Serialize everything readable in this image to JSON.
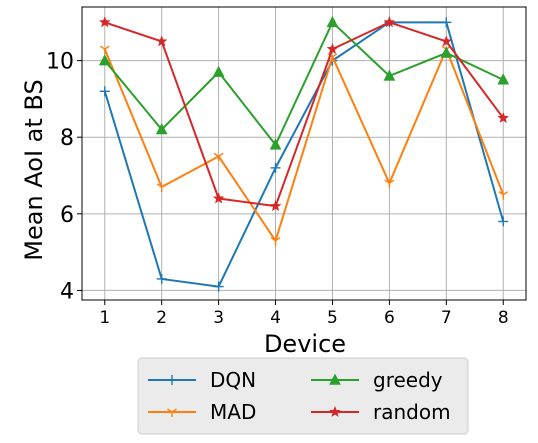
{
  "chart_data": {
    "type": "line",
    "xlabel": "Device",
    "ylabel": "Mean AoI at BS",
    "x": [
      1,
      2,
      3,
      4,
      5,
      6,
      7,
      8
    ],
    "xlim": [
      0.6,
      8.4
    ],
    "ylim": [
      3.75,
      11.4
    ],
    "xticks": [
      "1",
      "2",
      "3",
      "4",
      "5",
      "6",
      "7",
      "8"
    ],
    "yticks": [
      "4",
      "6",
      "8",
      "10"
    ],
    "grid": true,
    "legend_position": "below",
    "legend_columns": 2,
    "series": [
      {
        "name": "DQN",
        "color": "#1f77b4",
        "marker": "plus",
        "values": [
          9.2,
          4.3,
          4.1,
          7.2,
          10.0,
          11.0,
          11.0,
          5.8
        ]
      },
      {
        "name": "MAD",
        "color": "#ff7f0e",
        "marker": "tri-down",
        "values": [
          10.3,
          6.7,
          7.5,
          5.3,
          10.1,
          6.8,
          10.3,
          6.5
        ]
      },
      {
        "name": "greedy",
        "color": "#2ca02c",
        "marker": "triangle",
        "values": [
          10.0,
          8.2,
          9.7,
          7.8,
          11.0,
          9.6,
          10.2,
          9.5
        ]
      },
      {
        "name": "random",
        "color": "#d62728",
        "marker": "star",
        "values": [
          11.0,
          10.5,
          6.4,
          6.2,
          10.3,
          11.0,
          10.5,
          8.5
        ]
      }
    ]
  }
}
